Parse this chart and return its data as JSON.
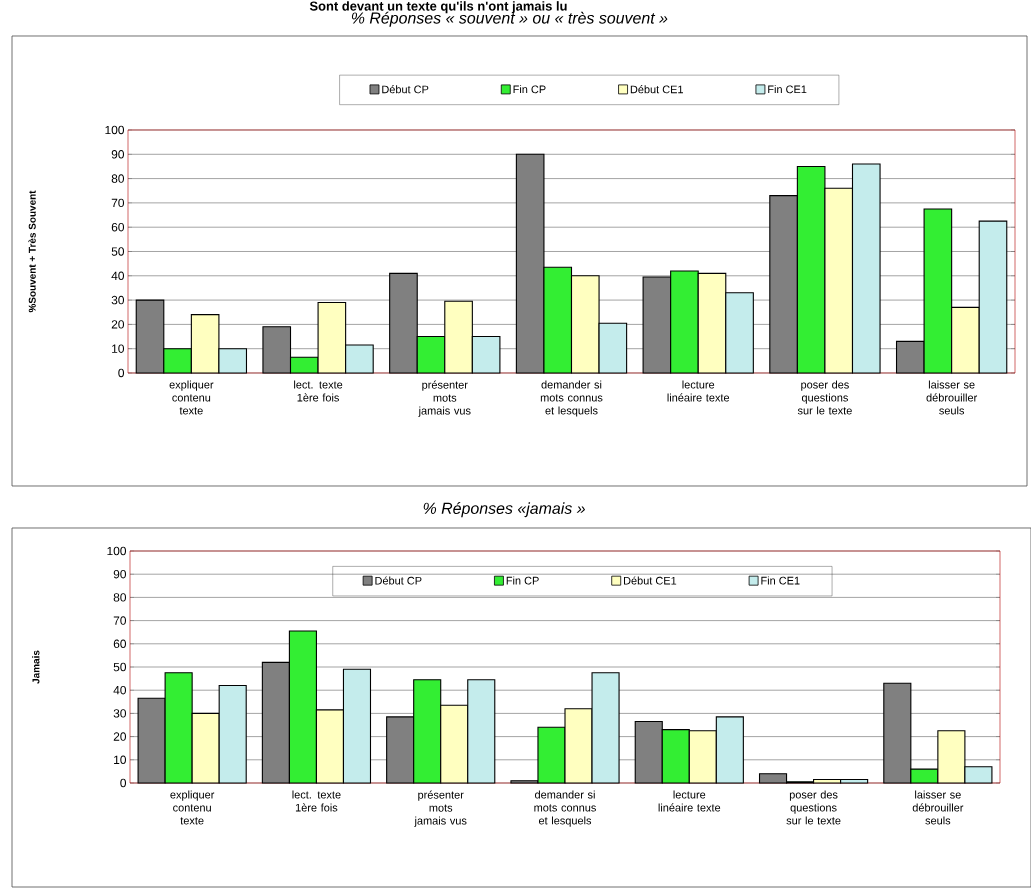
{
  "chart_data": [
    {
      "type": "bar",
      "title": "% Réponses « souvent » ou « très souvent »",
      "annotations": [
        "Sont devant un texte qu'ils n'ont jamais lu"
      ],
      "ylabel": "%Souvent + Très Souvent",
      "categories": [
        "expliquer contenu texte",
        "lect. texte 1ère fois",
        "présenter mots jamais vus",
        "demander si mots connus et lesquels",
        "lecture linéaire texte",
        "poser des questions sur le texte",
        "laisser se débrouiller seuls"
      ],
      "series": [
        {
          "name": "Début CP",
          "color": "#808080",
          "values": [
            30,
            19,
            41,
            90,
            39.5,
            73,
            13
          ]
        },
        {
          "name": "Fin CP",
          "color": "#33ee33",
          "values": [
            10,
            6.5,
            15,
            43.5,
            42,
            85,
            67.5
          ]
        },
        {
          "name": "Début CE1",
          "color": "#ffffc0",
          "values": [
            24,
            29,
            29.5,
            40,
            41,
            76,
            27
          ]
        },
        {
          "name": "Fin CE1",
          "color": "#c4ecec",
          "values": [
            10,
            11.5,
            15,
            20.5,
            33,
            86,
            62.5
          ]
        }
      ],
      "ylim": [
        0,
        100
      ],
      "yticks": [
        0,
        10,
        20,
        30,
        40,
        50,
        60,
        70,
        80,
        90,
        100
      ],
      "grid": "y",
      "legend": "top"
    },
    {
      "type": "bar",
      "title": "% Réponses «jamais »",
      "ylabel": "Jamais",
      "categories": [
        "expliquer contenu texte",
        "lect. texte 1ère fois",
        "présenter mots jamais vus",
        "demander si mots connus et lesquels",
        "lecture linéaire texte",
        "poser des questions sur le texte",
        "laisser se débrouiller seuls"
      ],
      "series": [
        {
          "name": "Début CP",
          "color": "#808080",
          "values": [
            36.5,
            52,
            28.5,
            1,
            26.5,
            4,
            43
          ]
        },
        {
          "name": "Fin CP",
          "color": "#33ee33",
          "values": [
            47.5,
            65.5,
            44.5,
            24,
            23,
            0.5,
            6
          ]
        },
        {
          "name": "Début CE1",
          "color": "#ffffc0",
          "values": [
            30,
            31.5,
            33.5,
            32,
            22.5,
            1.5,
            22.5
          ]
        },
        {
          "name": "Fin CE1",
          "color": "#c4ecec",
          "values": [
            42,
            49,
            44.5,
            47.5,
            28.5,
            1.5,
            7
          ]
        }
      ],
      "ylim": [
        0,
        100
      ],
      "yticks": [
        0,
        10,
        20,
        30,
        40,
        50,
        60,
        70,
        80,
        90,
        100
      ],
      "grid": "y",
      "legend": "top"
    }
  ]
}
